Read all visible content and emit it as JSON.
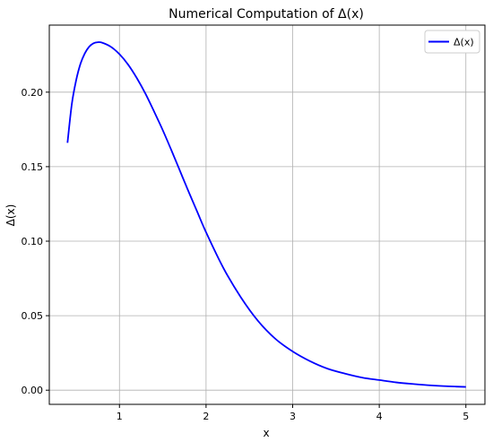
{
  "chart_data": {
    "type": "line",
    "title": "Numerical Computation of Δ(x)",
    "xlabel": "x",
    "ylabel": "Δ(x)",
    "xlim": [
      0.19,
      5.22
    ],
    "ylim": [
      -0.0095,
      0.245
    ],
    "xticks": [
      1,
      2,
      3,
      4,
      5
    ],
    "xtick_labels": [
      "1",
      "2",
      "3",
      "4",
      "5"
    ],
    "yticks": [
      0.0,
      0.05,
      0.1,
      0.15,
      0.2
    ],
    "ytick_labels": [
      "0.00",
      "0.05",
      "0.10",
      "0.15",
      "0.20"
    ],
    "grid": true,
    "legend_position": "top-right",
    "series": [
      {
        "name": "Δ(x)",
        "color": "#0000ff",
        "x": [
          0.4,
          0.45,
          0.5,
          0.55,
          0.6,
          0.65,
          0.7,
          0.75,
          0.8,
          0.9,
          1.0,
          1.1,
          1.2,
          1.3,
          1.4,
          1.5,
          1.6,
          1.7,
          1.8,
          1.9,
          2.0,
          2.2,
          2.4,
          2.6,
          2.8,
          3.0,
          3.2,
          3.4,
          3.6,
          3.8,
          4.0,
          4.2,
          4.4,
          4.6,
          4.8,
          5.0
        ],
        "y": [
          0.166,
          0.192,
          0.208,
          0.219,
          0.226,
          0.2305,
          0.2328,
          0.2335,
          0.2332,
          0.2305,
          0.2255,
          0.2185,
          0.2095,
          0.199,
          0.187,
          0.1745,
          0.161,
          0.147,
          0.133,
          0.1195,
          0.106,
          0.082,
          0.0625,
          0.0465,
          0.0345,
          0.026,
          0.0195,
          0.0145,
          0.0112,
          0.0085,
          0.0068,
          0.0052,
          0.0041,
          0.0032,
          0.0026,
          0.0022
        ]
      }
    ]
  }
}
